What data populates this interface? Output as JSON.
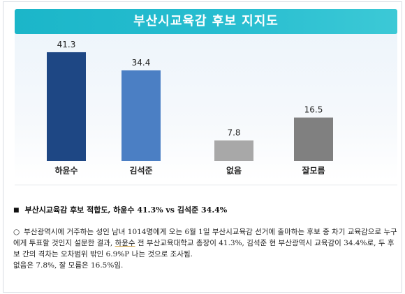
{
  "chart_data": {
    "type": "bar",
    "title": "부산시교육감 후보 지지도",
    "categories": [
      "하윤수",
      "김석준",
      "없음",
      "잘모름"
    ],
    "values": [
      41.3,
      34.4,
      7.8,
      16.5
    ],
    "value_labels": [
      "41.3",
      "34.4",
      "7.8",
      "16.5"
    ],
    "colors": [
      "#1e4784",
      "#4b7fc4",
      "#a8a8a8",
      "#808080"
    ],
    "ylim": [
      0,
      45
    ],
    "grid": false,
    "legend": "none"
  },
  "headline": {
    "bullet": "■",
    "text": "부산시교육감 후보 적합도, 하윤수 41.3% vs 김석준 34.4%"
  },
  "body": {
    "bullet": "○",
    "line1_pre": "부산광역시에 거주하는 성인 남녀 1014명에게 오는 6월 1일 부산시교육감 선거에 출마하는 후보 중 차기 교육감으로 누구에게 투표할 것인지 설문한 결과, ",
    "line1_name": "하윤수",
    "line1_post": " 전 부산교육대학교 총장이 41.3%, 김석준 현 부산광역시 교육감이 34.4%로, 두 후보 간의 격차는 오차범위 밖인 6.9%P 나는 것으로 조사됨.",
    "line2": "없음은 7.8%, 잘 모름은 16.5%임."
  }
}
